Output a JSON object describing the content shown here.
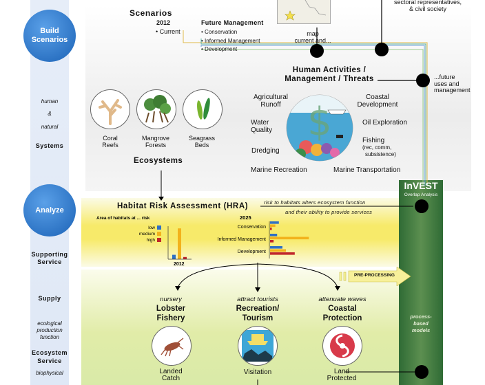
{
  "sidebar": {
    "build": "Build\nScenarios",
    "human": "human",
    "amp": "&",
    "natural": "natural",
    "systems": "Systems",
    "analyze": "Analyze",
    "supporting_1": "Supporting",
    "supporting_2": "Service",
    "supply": "Supply",
    "eco_prod_1": "ecological",
    "eco_prod_2": "production",
    "eco_prod_3": "function",
    "es_1": "Ecosystem",
    "es_2": "Service",
    "biophysical": "biophysical"
  },
  "top": {
    "stakeholders_1": "sectoral representatives,",
    "stakeholders_2": "& civil society",
    "scenarios_title": "Scenarios",
    "year": "2012",
    "current": "• Current",
    "future_title": "Future Management",
    "future_items": [
      "• Conservation",
      "• Informed Management",
      "• Development"
    ],
    "map_1": "map",
    "map_2": "current and...",
    "future_uses_1": "...future",
    "future_uses_2": "uses and",
    "future_uses_3": "management"
  },
  "human_activities": {
    "title_1": "Human Activities /",
    "title_2": "Management / Threats",
    "agri_1": "Agricultural",
    "agri_2": "Runoff",
    "coastal_1": "Coastal",
    "coastal_2": "Development",
    "water_1": "Water",
    "water_2": "Quality",
    "oil": "Oil Exploration",
    "dredging": "Dredging",
    "fishing_1": "Fishing",
    "fishing_2": "(rec, comm,",
    "fishing_3": "subsistence)",
    "marine_rec": "Marine Recreation",
    "marine_trans": "Marine Transportation"
  },
  "ecosystems": {
    "title": "Ecosystems",
    "coral_1": "Coral",
    "coral_2": "Reefs",
    "mangrove_1": "Mangrove",
    "mangrove_2": "Forests",
    "seagrass_1": "Seagrass",
    "seagrass_2": "Beds"
  },
  "hra": {
    "title": "Habitat Risk Assessment (HRA)",
    "note_1": "risk to habitats alters ecosystem function",
    "note_2": "and their ability to provide services"
  },
  "invest": {
    "title": "InVEST",
    "subtitle": "Overlap Analysis",
    "process_1": "process-",
    "process_2": "based",
    "process_3": "models",
    "preprocessing": "PRE-PROCESSING"
  },
  "supply": {
    "lobster_func": "nursery",
    "lobster_1": "Lobster",
    "lobster_2": "Fishery",
    "lobster_out_1": "Landed",
    "lobster_out_2": "Catch",
    "rec_func": "attract  tourists",
    "rec_1": "Recreation/",
    "rec_2": "Tourism",
    "rec_out": "Visitation",
    "coast_func": "attenuate waves",
    "coast_1": "Coastal",
    "coast_2": "Protection",
    "coast_out_1": "Land",
    "coast_out_2": "Protected"
  },
  "colors": {
    "low": "#2f6fc4",
    "medium": "#f2b21c",
    "high": "#c0262b",
    "sidebar_circle": "#1b62b6",
    "invest_green": "#2f6b35"
  },
  "chart_data": [
    {
      "type": "bar",
      "title": "Area of habitats at ... risk",
      "xlabel": "2012",
      "legend": [
        "low",
        "medium",
        "high"
      ],
      "categories": [
        "2012"
      ],
      "series": [
        {
          "name": "low",
          "values": [
            2
          ]
        },
        {
          "name": "medium",
          "values": [
            14
          ]
        },
        {
          "name": "high",
          "values": [
            1
          ]
        }
      ],
      "ylim": [
        0,
        15
      ]
    },
    {
      "type": "bar",
      "orientation": "horizontal",
      "title": "2025",
      "categories": [
        "Conservation",
        "Informed Management",
        "Development"
      ],
      "series": [
        {
          "name": "low",
          "values": [
            5,
            4,
            7
          ]
        },
        {
          "name": "medium",
          "values": [
            3,
            22,
            9
          ]
        },
        {
          "name": "high",
          "values": [
            1,
            2,
            14
          ]
        }
      ],
      "xlim": [
        0,
        25
      ]
    }
  ]
}
